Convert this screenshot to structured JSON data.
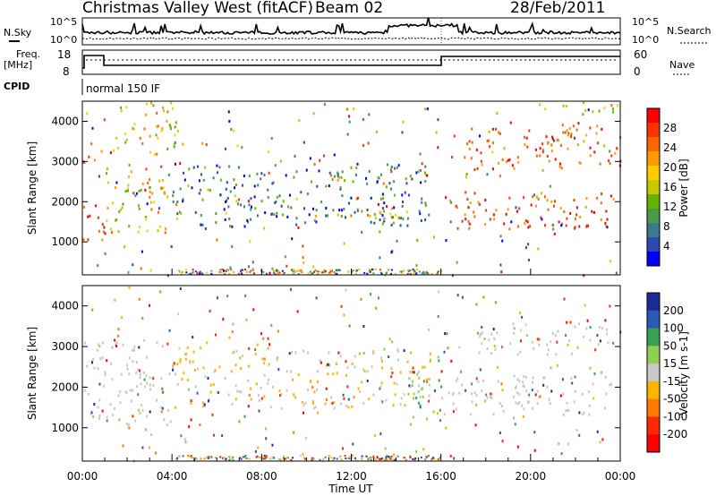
{
  "header": {
    "title": "Christmas Valley West (fitACF)",
    "beam": "Beam 02",
    "date": "28/Feb/2011"
  },
  "status_panel": {
    "nsky_label": "N.Sky",
    "nsky_ticks": [
      "10^5",
      "10^0"
    ],
    "nsky_right_ticks": [
      "10^5",
      "10^0"
    ],
    "nsearch_label": "N.Search",
    "freq_label_1": "Freq.",
    "freq_label_2": "[MHz]",
    "freq_ticks": [
      "18",
      "8"
    ],
    "nave_ticks": [
      "60",
      "0"
    ],
    "nave_label": "Nave",
    "cpid_label": "CPID",
    "cpid_value": "normal 150 IF"
  },
  "chart_data": [
    {
      "type": "heatmap",
      "name": "power",
      "ylabel": "Slant Range [km]",
      "yticks": [
        1000,
        2000,
        3000,
        4000
      ],
      "ylim": [
        180,
        4500
      ],
      "xlabel": "",
      "colorbar": {
        "label": "Power [dB]",
        "ticks": [
          "28",
          "24",
          "20",
          "16",
          "12",
          "8",
          "4"
        ],
        "colors": [
          "#ff0000",
          "#ff3300",
          "#ff6600",
          "#ff9900",
          "#ffcc00",
          "#c8c800",
          "#64b400",
          "#4a9a4a",
          "#3a7a8a",
          "#2a4ab0",
          "#0000ff"
        ]
      },
      "regions": [
        {
          "t0": 0.0,
          "t1": 1.0,
          "r0": 1050,
          "r1": 2000,
          "level": "high"
        },
        {
          "t0": 0.0,
          "t1": 1.0,
          "r0": 2900,
          "r1": 3300,
          "level": "high"
        },
        {
          "t0": 1.0,
          "t1": 3.8,
          "r0": 1200,
          "r1": 2800,
          "level": "mid"
        },
        {
          "t0": 1.5,
          "t1": 4.5,
          "r0": 3200,
          "r1": 4500,
          "level": "mid"
        },
        {
          "t0": 4.0,
          "t1": 15.5,
          "r0": 1400,
          "r1": 3000,
          "level": "low"
        },
        {
          "t0": 10.0,
          "t1": 14.5,
          "r0": 1500,
          "r1": 1800,
          "level": "mid"
        },
        {
          "t0": 16.0,
          "t1": 24.0,
          "r0": 1350,
          "r1": 2200,
          "level": "high"
        },
        {
          "t0": 17.0,
          "t1": 24.0,
          "r0": 2800,
          "r1": 4000,
          "level": "high"
        },
        {
          "t0": 20.0,
          "t1": 24.0,
          "r0": 4200,
          "r1": 4450,
          "level": "mid"
        }
      ]
    },
    {
      "type": "heatmap",
      "name": "velocity",
      "ylabel": "Slant Range [km]",
      "yticks": [
        1000,
        2000,
        3000,
        4000
      ],
      "ylim": [
        180,
        4500
      ],
      "xlabel": "Time UT",
      "xticks": [
        "00:00",
        "04:00",
        "08:00",
        "12:00",
        "16:00",
        "20:00",
        "00:00"
      ],
      "xlim": [
        0,
        24
      ],
      "colorbar": {
        "label": "Velocity [m s-1]",
        "ticks": [
          "200",
          "100",
          "50",
          "15",
          "-15",
          "-50",
          "-100",
          "-200"
        ],
        "colors": [
          "#1a2a9a",
          "#2a5ab8",
          "#3aa050",
          "#8fd050",
          "#c8c8c8",
          "#ffb400",
          "#ff7800",
          "#ff2800",
          "#ff0000"
        ]
      },
      "regions": [
        {
          "t0": 0.0,
          "t1": 4.0,
          "r0": 1100,
          "r1": 3200,
          "level": "ground"
        },
        {
          "t0": 4.0,
          "t1": 15.5,
          "r0": 1500,
          "r1": 3000,
          "level": "away"
        },
        {
          "t0": 14.5,
          "t1": 16.0,
          "r0": 1100,
          "r1": 2500,
          "level": "toward"
        },
        {
          "t0": 16.0,
          "t1": 24.0,
          "r0": 1350,
          "r1": 2300,
          "level": "ground"
        },
        {
          "t0": 17.5,
          "t1": 24.0,
          "r0": 2800,
          "r1": 3600,
          "level": "ground"
        }
      ]
    }
  ]
}
